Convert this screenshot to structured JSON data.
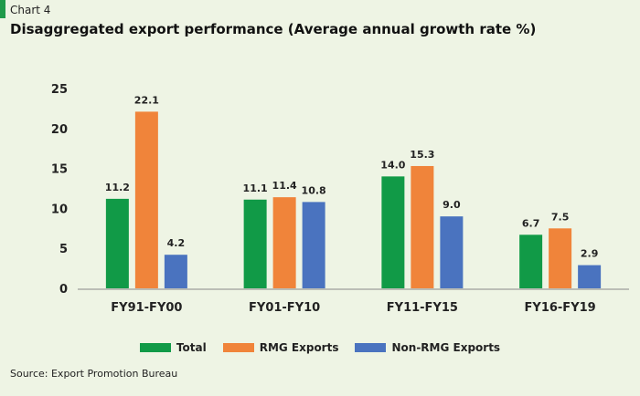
{
  "header": {
    "label": "Chart 4",
    "title": "Disaggregated export performance (Average annual growth rate %)"
  },
  "colors": {
    "Total": "#119a47",
    "RMG Exports": "#f0843a",
    "Non-RMG Exports": "#4a73bf",
    "accent": "#1f9a4a"
  },
  "chart_data": {
    "type": "bar",
    "categories": [
      "FY91-FY00",
      "FY01-FY10",
      "FY11-FY15",
      "FY16-FY19"
    ],
    "series": [
      {
        "name": "Total",
        "values": [
          11.2,
          11.1,
          14.0,
          6.7
        ]
      },
      {
        "name": "RMG Exports",
        "values": [
          22.1,
          11.4,
          15.3,
          7.5
        ]
      },
      {
        "name": "Non-RMG Exports",
        "values": [
          4.2,
          10.8,
          9.0,
          2.9
        ]
      }
    ],
    "data_labels": [
      [
        "11.2",
        "11.1",
        "14.0",
        "6.7"
      ],
      [
        "22.1",
        "11.4",
        "15.3",
        "7.5"
      ],
      [
        "4.2",
        "10.8",
        "9.0",
        "2.9"
      ]
    ],
    "yticks": [
      0,
      5,
      10,
      15,
      20,
      25
    ],
    "ylim": [
      0,
      25
    ],
    "grid": false,
    "legend": "bottom"
  },
  "source": "Source: Export Promotion Bureau"
}
